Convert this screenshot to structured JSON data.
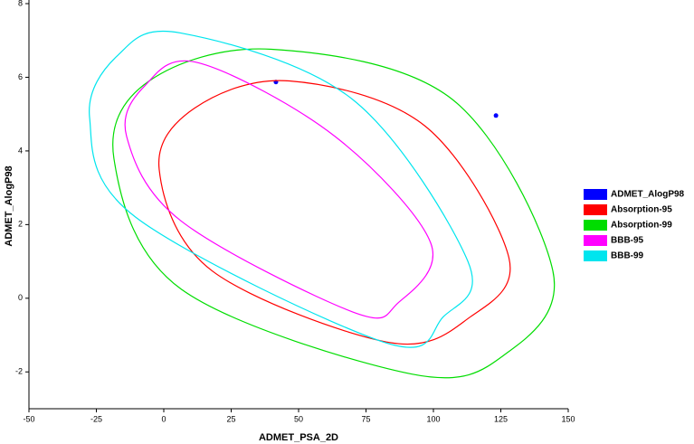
{
  "chart_data": {
    "type": "scatter",
    "xlabel": "ADMET_PSA_2D",
    "ylabel": "ADMET_AlogP98",
    "xlim": [
      -50,
      150
    ],
    "ylim": [
      -3,
      8
    ],
    "xticks": [
      -50,
      -25,
      0,
      25,
      50,
      75,
      100,
      125,
      150
    ],
    "yticks": [
      -2,
      0,
      2,
      4,
      6,
      8
    ],
    "series": [
      {
        "name": "ADMET_AlogP98",
        "color": "#0000ff",
        "type": "scatter",
        "x": [
          41.6,
          123.2
        ],
        "values": [
          5.87,
          4.96
        ]
      },
      {
        "name": "Absorption-95",
        "color": "#ff0000",
        "type": "ellipse",
        "x": [
          -1.7,
          11.4,
          46.6,
          97,
          128,
          113.8,
          83.6,
          18
        ],
        "values": [
          3.5,
          5.16,
          5.9,
          4.67,
          1.1,
          -0.5,
          -1.2,
          0.74
        ]
      },
      {
        "name": "Absorption-99",
        "color": "#00dd00",
        "type": "ellipse",
        "x": [
          -18.5,
          -5.4,
          40,
          107,
          144.3,
          127,
          92,
          6.4
        ],
        "values": [
          3.8,
          5.9,
          6.76,
          5.4,
          0.74,
          -1.5,
          -2.06,
          0.25
        ]
      },
      {
        "name": "BBB-95",
        "color": "#ff00ff",
        "type": "ellipse",
        "x": [
          -13.8,
          -7,
          13,
          63.4,
          99,
          87,
          70,
          6.4
        ],
        "values": [
          4.4,
          5.77,
          6.39,
          4.4,
          1.5,
          -0.12,
          -0.37,
          2.1
        ]
      },
      {
        "name": "BBB-99",
        "color": "#00e5ee",
        "type": "ellipse",
        "x": [
          -27.5,
          -17,
          6.4,
          70,
          112.8,
          103.7,
          81.9,
          -10.4
        ],
        "values": [
          4.9,
          6.6,
          7.2,
          5.4,
          1,
          -0.5,
          -1.2,
          2.2
        ]
      }
    ]
  }
}
